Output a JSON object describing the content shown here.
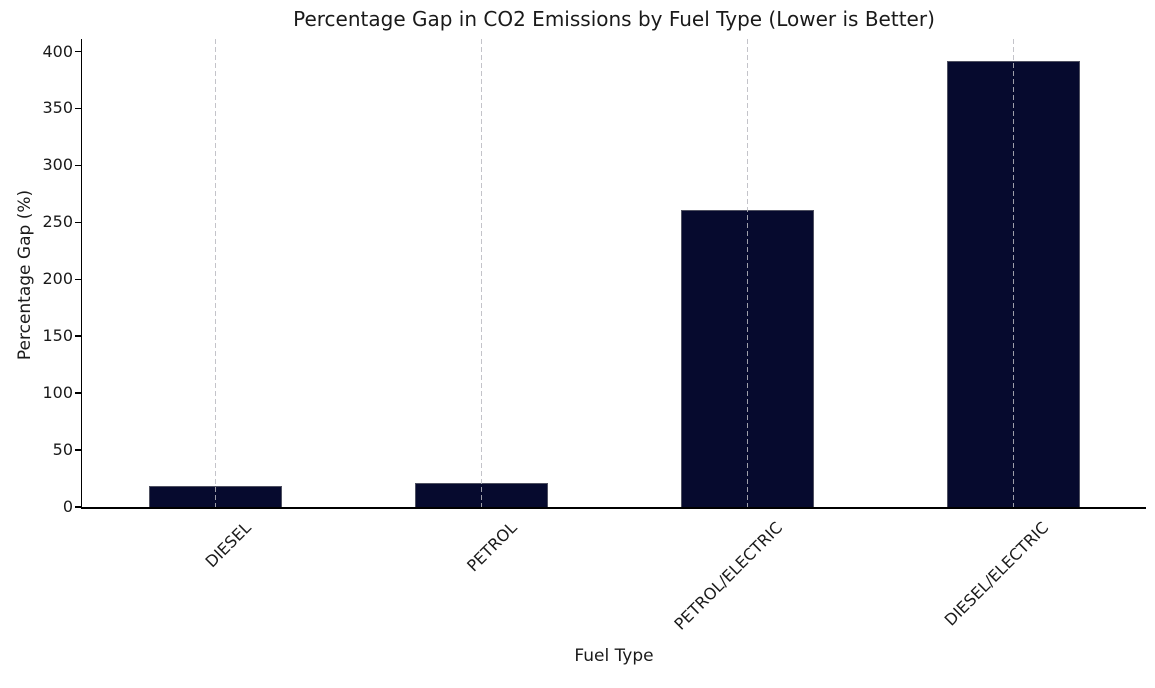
{
  "figure": {
    "title": "Percentage Gap in CO2 Emissions by Fuel Type (Lower is Better)",
    "background_color": "#ffffff",
    "text_color": "#1a1a1a"
  },
  "chart_data": {
    "type": "bar",
    "title": "Percentage Gap in CO2 Emissions by Fuel Type (Lower is Better)",
    "categories": [
      "DIESEL",
      "PETROL",
      "PETROL/ELECTRIC",
      "DIESEL/ELECTRIC"
    ],
    "values": [
      18.5,
      21,
      261,
      392
    ],
    "xlabel": "Fuel Type",
    "ylabel": "Percentage Gap (%)",
    "ylim": [
      0,
      411
    ],
    "yticks": [
      0,
      50,
      100,
      150,
      200,
      250,
      300,
      350,
      400
    ],
    "bar_color": "#060a2e",
    "bar_edge_color": "#8c8c8c",
    "grid": "vertical-dashed",
    "gridline_color": "#c9c9cc",
    "xtick_rotation_deg": 45,
    "legend": "none"
  }
}
